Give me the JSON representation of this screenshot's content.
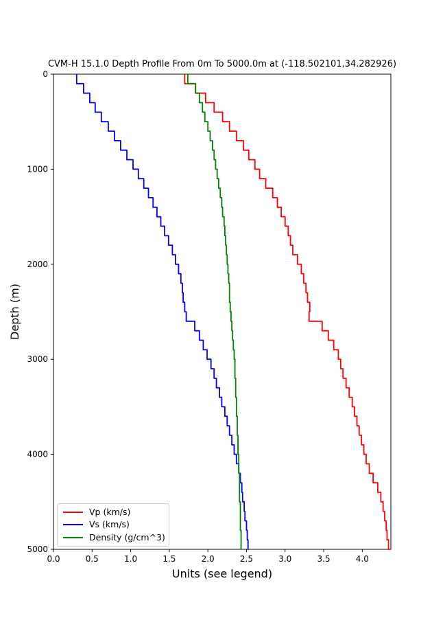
{
  "chart_data": {
    "type": "line",
    "line_style": "steps",
    "title": "CVM-H 15.1.0 Depth Profile From 0m To 5000.0m at (-118.502101,34.282926)",
    "xlabel": "Units (see legend)",
    "ylabel": "Depth (m)",
    "xlim": [
      0.0,
      4.37
    ],
    "ylim": [
      5000,
      0
    ],
    "y_axis_inverted": true,
    "grid": false,
    "x_ticks": [
      "0.0",
      "0.5",
      "1.0",
      "1.5",
      "2.0",
      "2.5",
      "3.0",
      "3.5",
      "4.0"
    ],
    "y_ticks": [
      "0",
      "1000",
      "2000",
      "3000",
      "4000",
      "5000"
    ],
    "legend": {
      "position": "lower left"
    },
    "depths_m": [
      0,
      100,
      200,
      300,
      400,
      500,
      600,
      700,
      800,
      900,
      1000,
      1100,
      1200,
      1300,
      1400,
      1500,
      1600,
      1700,
      1800,
      1900,
      2000,
      2100,
      2200,
      2300,
      2400,
      2500,
      2600,
      2700,
      2800,
      2900,
      3000,
      3100,
      3200,
      3300,
      3400,
      3500,
      3600,
      3700,
      3800,
      3900,
      4000,
      4100,
      4200,
      4300,
      4400,
      4500,
      4600,
      4700,
      4800,
      4900,
      5000
    ],
    "series": [
      {
        "name": "Vp (km/s)",
        "color": "#ff0000",
        "values": [
          1.7,
          1.84,
          1.97,
          2.08,
          2.19,
          2.28,
          2.37,
          2.46,
          2.53,
          2.61,
          2.67,
          2.75,
          2.84,
          2.9,
          2.95,
          3.0,
          3.04,
          3.07,
          3.1,
          3.16,
          3.21,
          3.24,
          3.27,
          3.29,
          3.32,
          3.31,
          3.48,
          3.56,
          3.63,
          3.69,
          3.72,
          3.75,
          3.79,
          3.83,
          3.87,
          3.9,
          3.93,
          3.96,
          3.99,
          4.02,
          4.05,
          4.09,
          4.14,
          4.2,
          4.24,
          4.27,
          4.29,
          4.31,
          4.32,
          4.34,
          4.36
        ]
      },
      {
        "name": "Vs (km/s)",
        "color": "#0000ff",
        "values": [
          0.3,
          0.39,
          0.47,
          0.54,
          0.62,
          0.71,
          0.79,
          0.87,
          0.95,
          1.03,
          1.1,
          1.17,
          1.23,
          1.29,
          1.34,
          1.39,
          1.44,
          1.49,
          1.54,
          1.58,
          1.62,
          1.65,
          1.67,
          1.68,
          1.7,
          1.72,
          1.83,
          1.89,
          1.94,
          1.99,
          2.04,
          2.08,
          2.11,
          2.15,
          2.18,
          2.22,
          2.25,
          2.28,
          2.31,
          2.34,
          2.37,
          2.4,
          2.42,
          2.44,
          2.45,
          2.47,
          2.48,
          2.5,
          2.51,
          2.52,
          2.53
        ]
      },
      {
        "name": "Density (g/cm^3)",
        "color": "#008000",
        "values": [
          1.74,
          1.84,
          1.89,
          1.93,
          1.96,
          2.0,
          2.03,
          2.06,
          2.08,
          2.1,
          2.12,
          2.14,
          2.16,
          2.18,
          2.19,
          2.21,
          2.22,
          2.23,
          2.24,
          2.25,
          2.26,
          2.27,
          2.28,
          2.28,
          2.29,
          2.3,
          2.31,
          2.32,
          2.33,
          2.34,
          2.35,
          2.35,
          2.36,
          2.36,
          2.37,
          2.37,
          2.38,
          2.38,
          2.39,
          2.39,
          2.4,
          2.4,
          2.41,
          2.41,
          2.41,
          2.42,
          2.42,
          2.42,
          2.43,
          2.43,
          2.43
        ]
      }
    ],
    "colors": {
      "background": "#ffffff",
      "axis": "#000000",
      "tick_text": "#000000",
      "legend_border": "#cccccc"
    }
  }
}
